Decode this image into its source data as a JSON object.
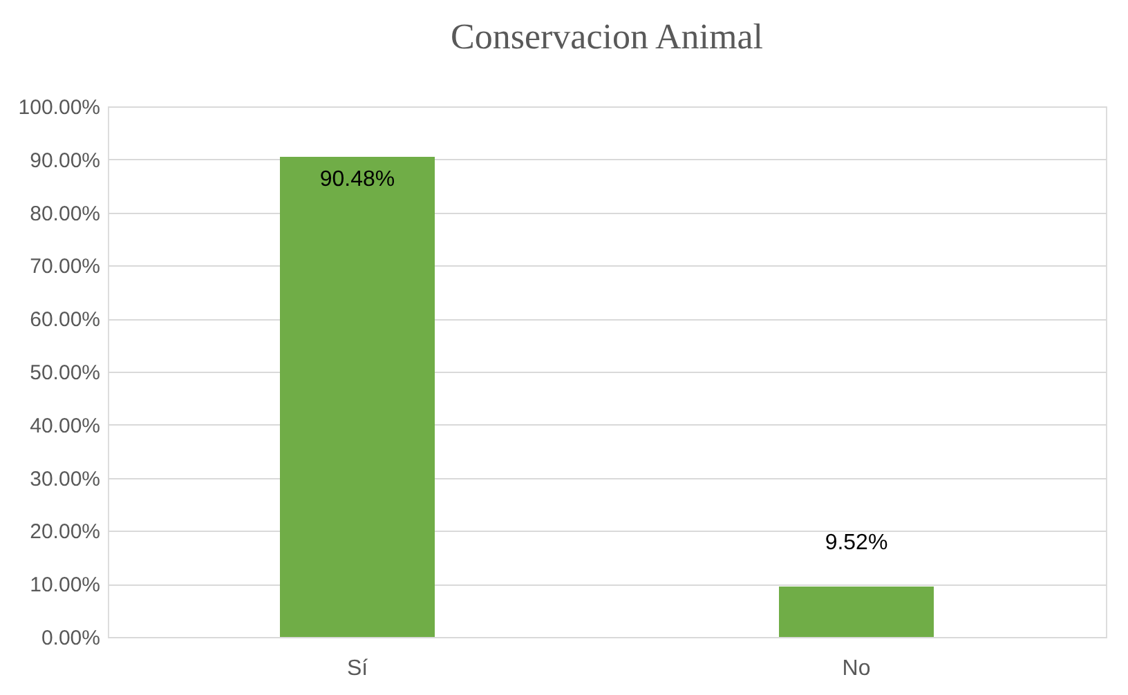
{
  "chart_data": {
    "type": "bar",
    "title": "Conservacion Animal",
    "categories": [
      "Sí",
      "No"
    ],
    "values": [
      90.48,
      9.52
    ],
    "value_labels": [
      "90.48%",
      "9.52%"
    ],
    "color": "#70ad47",
    "ylim": [
      0,
      100
    ],
    "yticks": [
      {
        "value": 0,
        "label": "0.00%"
      },
      {
        "value": 10,
        "label": "10.00%"
      },
      {
        "value": 20,
        "label": "20.00%"
      },
      {
        "value": 30,
        "label": "30.00%"
      },
      {
        "value": 40,
        "label": "40.00%"
      },
      {
        "value": 50,
        "label": "50.00%"
      },
      {
        "value": 60,
        "label": "60.00%"
      },
      {
        "value": 70,
        "label": "70.00%"
      },
      {
        "value": 80,
        "label": "80.00%"
      },
      {
        "value": 90,
        "label": "90.00%"
      },
      {
        "value": 100,
        "label": "100.00%"
      }
    ],
    "grid": "y"
  }
}
